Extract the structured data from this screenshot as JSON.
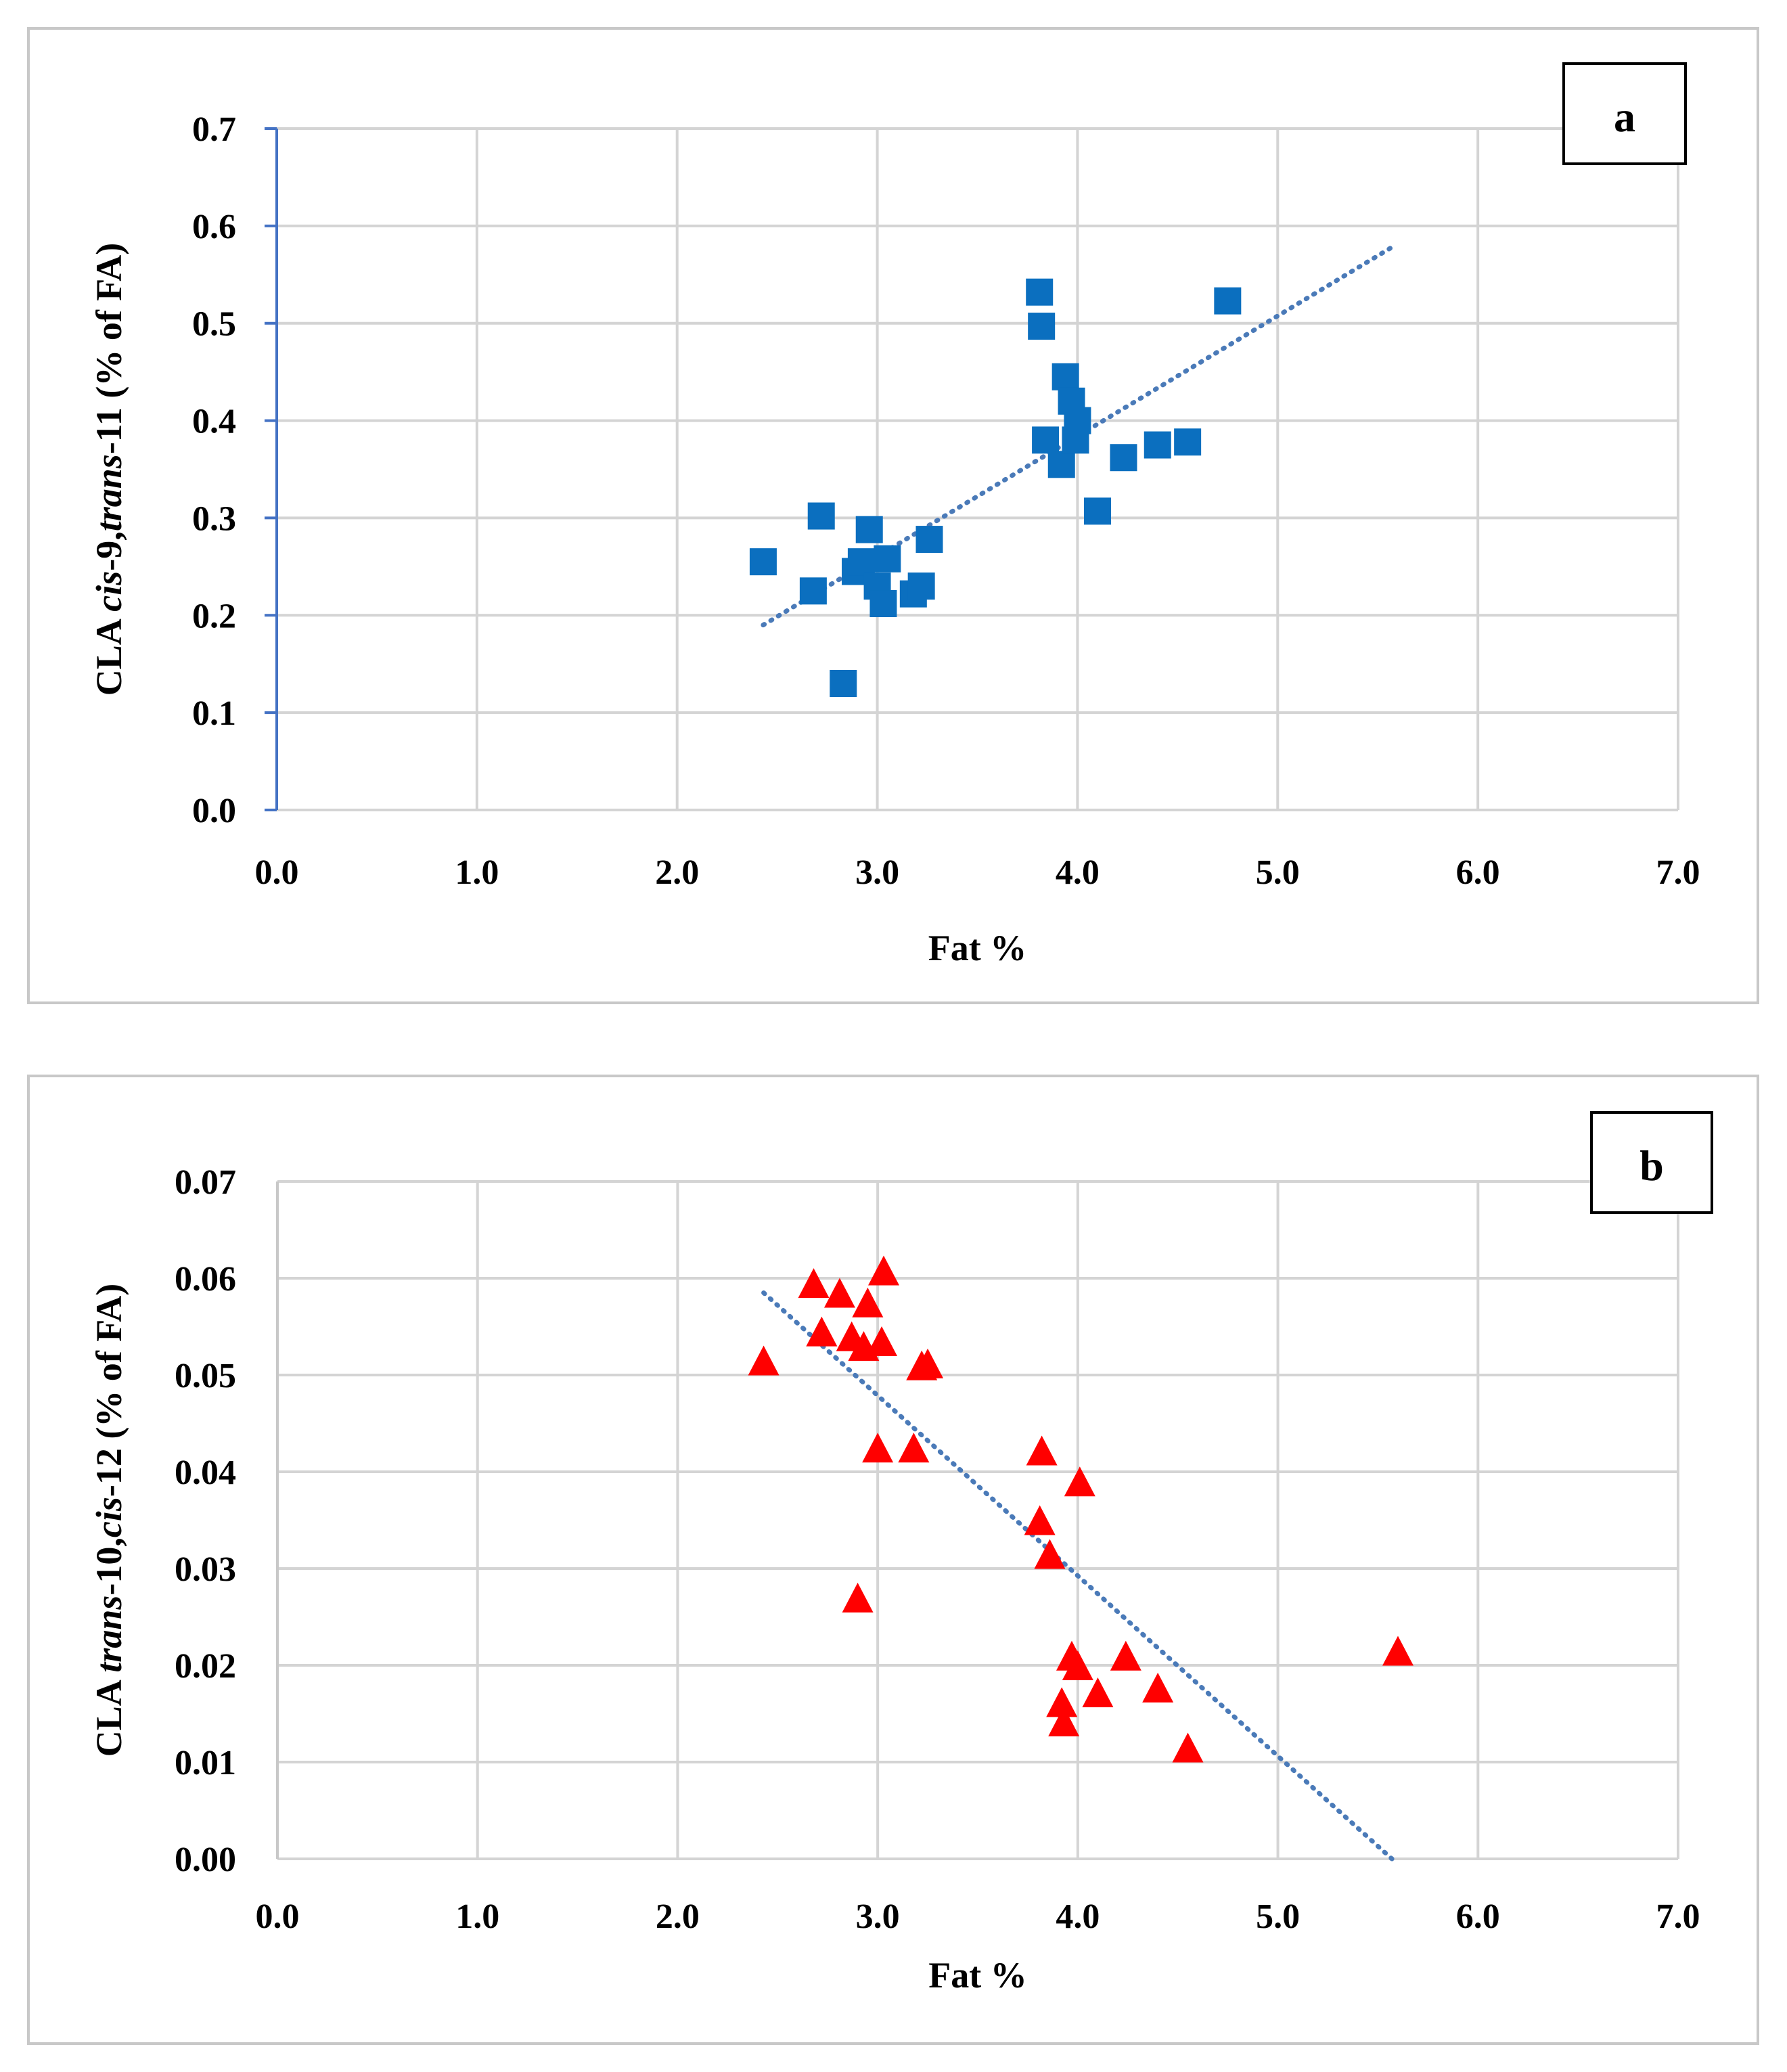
{
  "chart_data": [
    {
      "id": "a",
      "type": "scatter",
      "panel_label": "a",
      "xlabel": "Fat %",
      "ylabel_parts": [
        {
          "text": "CLA ",
          "italic": false
        },
        {
          "text": "cis",
          "italic": true
        },
        {
          "text": "-9,",
          "italic": false
        },
        {
          "text": "trans",
          "italic": true
        },
        {
          "text": "-11 (% of FA)",
          "italic": false
        }
      ],
      "xlim": [
        0,
        7
      ],
      "ylim": [
        0,
        0.7
      ],
      "xticks": [
        0,
        1,
        2,
        3,
        4,
        5,
        6,
        7
      ],
      "xtick_labels": [
        "0.0",
        "1.0",
        "2.0",
        "3.0",
        "4.0",
        "5.0",
        "6.0",
        "7.0"
      ],
      "yticks": [
        0,
        0.1,
        0.2,
        0.3,
        0.4,
        0.5,
        0.6,
        0.7
      ],
      "ytick_labels": [
        "0.0",
        "0.1",
        "0.2",
        "0.3",
        "0.4",
        "0.5",
        "0.6",
        "0.7"
      ],
      "grid": true,
      "marker": "square",
      "color": "#0b6fbf",
      "axis_color": "#4472c4",
      "trend_color": "#4a7ab8",
      "series": [
        {
          "name": "CLA cis-9,trans-11",
          "x": [
            2.43,
            2.68,
            2.72,
            2.83,
            2.89,
            2.92,
            2.96,
            3.0,
            3.03,
            3.05,
            3.18,
            3.22,
            3.26,
            3.81,
            3.82,
            3.84,
            3.92,
            3.94,
            3.97,
            3.99,
            4.0,
            4.1,
            4.23,
            4.4,
            4.55,
            4.75
          ],
          "y": [
            0.255,
            0.225,
            0.302,
            0.13,
            0.245,
            0.255,
            0.288,
            0.23,
            0.212,
            0.258,
            0.222,
            0.23,
            0.278,
            0.532,
            0.497,
            0.38,
            0.355,
            0.445,
            0.42,
            0.38,
            0.4,
            0.307,
            0.362,
            0.375,
            0.378,
            0.523
          ]
        }
      ],
      "trendline": {
        "x": [
          2.43,
          5.57
        ],
        "y": [
          0.19,
          0.578
        ]
      }
    },
    {
      "id": "b",
      "type": "scatter",
      "panel_label": "b",
      "xlabel": "Fat %",
      "ylabel_parts": [
        {
          "text": "CLA ",
          "italic": false
        },
        {
          "text": "trans",
          "italic": true
        },
        {
          "text": "-10,",
          "italic": false
        },
        {
          "text": "cis",
          "italic": true
        },
        {
          "text": "-12 (% of FA)",
          "italic": false
        }
      ],
      "xlim": [
        0,
        7
      ],
      "ylim": [
        0,
        0.07
      ],
      "xticks": [
        0,
        1,
        2,
        3,
        4,
        5,
        6,
        7
      ],
      "xtick_labels": [
        "0.0",
        "1.0",
        "2.0",
        "3.0",
        "4.0",
        "5.0",
        "6.0",
        "7.0"
      ],
      "yticks": [
        0,
        0.01,
        0.02,
        0.03,
        0.04,
        0.05,
        0.06,
        0.07
      ],
      "ytick_labels": [
        "0.00",
        "0.01",
        "0.02",
        "0.03",
        "0.04",
        "0.05",
        "0.06",
        "0.07"
      ],
      "grid": true,
      "marker": "triangle",
      "color": "#ff0000",
      "axis_color": "#c8c8c8",
      "trend_color": "#4a7ab8",
      "series": [
        {
          "name": "CLA trans-10,cis-12",
          "x": [
            2.43,
            2.68,
            2.72,
            2.81,
            2.87,
            2.9,
            2.93,
            2.95,
            3.0,
            3.02,
            3.03,
            3.18,
            3.22,
            3.25,
            3.81,
            3.82,
            3.86,
            3.92,
            3.93,
            3.97,
            4.0,
            4.01,
            4.1,
            4.24,
            4.4,
            4.55,
            5.6
          ],
          "y": [
            0.0515,
            0.0595,
            0.0545,
            0.0585,
            0.054,
            0.027,
            0.053,
            0.0575,
            0.0425,
            0.0535,
            0.0608,
            0.0425,
            0.051,
            0.0512,
            0.035,
            0.0422,
            0.0315,
            0.0162,
            0.0142,
            0.021,
            0.02,
            0.039,
            0.0172,
            0.021,
            0.0177,
            0.0115,
            0.0215
          ]
        }
      ],
      "trendline": {
        "x": [
          2.43,
          5.57
        ],
        "y": [
          0.0585,
          0.0
        ]
      }
    }
  ]
}
